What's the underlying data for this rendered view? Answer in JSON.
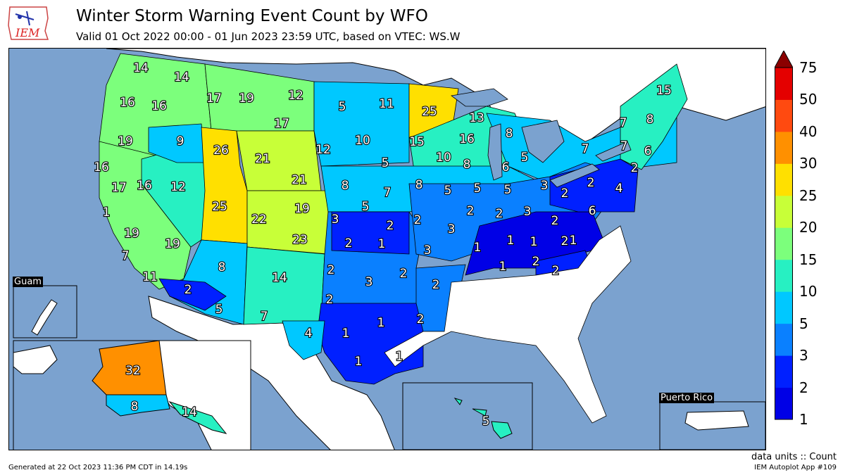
{
  "header": {
    "title": "Winter Storm Warning Event Count by WFO",
    "subtitle": "Valid 01 Oct 2022 00:00 - 01 Jun 2023 23:59 UTC, based on VTEC: WS.W",
    "logo_text": "IEM"
  },
  "insets": {
    "guam": "Guam",
    "puerto_rico": "Puerto Rico"
  },
  "colorbar": {
    "ticks": [
      "1",
      "2",
      "3",
      "5",
      "10",
      "15",
      "20",
      "25",
      "30",
      "40",
      "50",
      "75"
    ],
    "colors": [
      "#0000e6",
      "#0020ff",
      "#0a80ff",
      "#00c8ff",
      "#27f0c2",
      "#7cff7c",
      "#c8ff38",
      "#ffe000",
      "#ff9000",
      "#ff4a10",
      "#e40000",
      "#8b0000"
    ]
  },
  "labels": [
    {
      "v": "14"
    },
    {
      "v": "14"
    },
    {
      "v": "16"
    },
    {
      "v": "16"
    },
    {
      "v": "17"
    },
    {
      "v": "19"
    },
    {
      "v": "12"
    },
    {
      "v": "5"
    },
    {
      "v": "11"
    },
    {
      "v": "25"
    },
    {
      "v": "15"
    },
    {
      "v": "13"
    },
    {
      "v": "19"
    },
    {
      "v": "9"
    },
    {
      "v": "26"
    },
    {
      "v": "21"
    },
    {
      "v": "17"
    },
    {
      "v": "12"
    },
    {
      "v": "10"
    },
    {
      "v": "16"
    },
    {
      "v": "8"
    },
    {
      "v": "15"
    },
    {
      "v": "7"
    },
    {
      "v": "8"
    },
    {
      "v": "16"
    },
    {
      "v": "17"
    },
    {
      "v": "16"
    },
    {
      "v": "12"
    },
    {
      "v": "21"
    },
    {
      "v": "5"
    },
    {
      "v": "10"
    },
    {
      "v": "8"
    },
    {
      "v": "6"
    },
    {
      "v": "5"
    },
    {
      "v": "7"
    },
    {
      "v": "7"
    },
    {
      "v": "6"
    },
    {
      "v": "2"
    },
    {
      "v": "4"
    },
    {
      "v": "25"
    },
    {
      "v": "1"
    },
    {
      "v": "8"
    },
    {
      "v": "7"
    },
    {
      "v": "8"
    },
    {
      "v": "5"
    },
    {
      "v": "5"
    },
    {
      "v": "5"
    },
    {
      "v": "3"
    },
    {
      "v": "2"
    },
    {
      "v": "2"
    },
    {
      "v": "22"
    },
    {
      "v": "19"
    },
    {
      "v": "3"
    },
    {
      "v": "5"
    },
    {
      "v": "2"
    },
    {
      "v": "2"
    },
    {
      "v": "2"
    },
    {
      "v": "2"
    },
    {
      "v": "3"
    },
    {
      "v": "2"
    },
    {
      "v": "6"
    },
    {
      "v": "19"
    },
    {
      "v": "19"
    },
    {
      "v": "23"
    },
    {
      "v": "2"
    },
    {
      "v": "1"
    },
    {
      "v": "3"
    },
    {
      "v": "3"
    },
    {
      "v": "1"
    },
    {
      "v": "1"
    },
    {
      "v": "1"
    },
    {
      "v": "2"
    },
    {
      "v": "1"
    },
    {
      "v": "7"
    },
    {
      "v": "8"
    },
    {
      "v": "2"
    },
    {
      "v": "14"
    },
    {
      "v": "2"
    },
    {
      "v": "1"
    },
    {
      "v": "2"
    },
    {
      "v": "2"
    },
    {
      "v": "11"
    },
    {
      "v": "2"
    },
    {
      "v": "3"
    },
    {
      "v": "2"
    },
    {
      "v": "5"
    },
    {
      "v": "7"
    },
    {
      "v": "2"
    },
    {
      "v": "4"
    },
    {
      "v": "1"
    },
    {
      "v": "1"
    },
    {
      "v": "2"
    },
    {
      "v": "1"
    },
    {
      "v": "1"
    },
    {
      "v": "32"
    },
    {
      "v": "8"
    },
    {
      "v": "14"
    },
    {
      "v": "5"
    }
  ],
  "footer": {
    "generated": "Generated at 22 Oct 2023 11:36 PM CDT in 14.19s",
    "units": "data units :: Count",
    "app": "IEM Autoplot App #109"
  }
}
